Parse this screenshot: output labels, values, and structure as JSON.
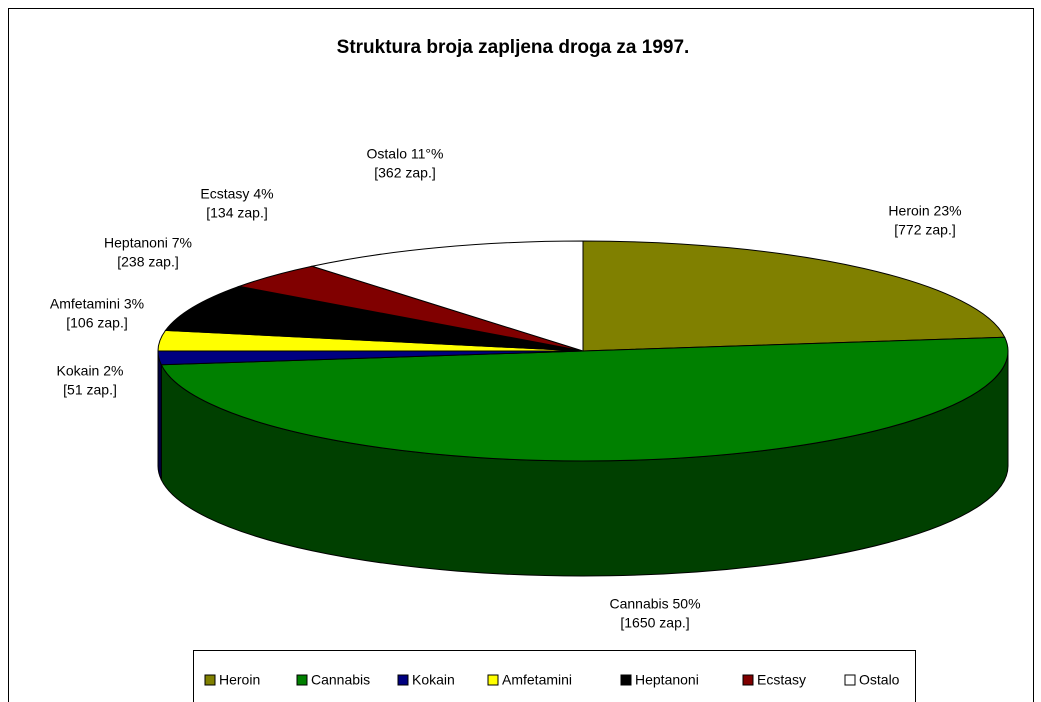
{
  "chart_data": {
    "type": "pie3d",
    "title": "Struktura broja zapljena droga za 1997.",
    "categories": [
      "Heroin",
      "Cannabis",
      "Kokain",
      "Amfetamini",
      "Heptanoni",
      "Ecstasy",
      "Ostalo"
    ],
    "values": [
      23,
      50,
      2,
      3,
      7,
      4,
      11
    ],
    "value_labels": [
      "Heroin 23%",
      "Cannabis 50%",
      "Kokain 2%",
      "Amfetamini 3%",
      "Heptanoni 7%",
      "Ecstasy 4%",
      "Ostalo 11°%"
    ],
    "counts": [
      772,
      1650,
      51,
      106,
      238,
      134,
      362
    ],
    "count_labels": [
      "[772 zap.]",
      "[1650 zap.]",
      "[51 zap.]",
      "[106 zap.]",
      "[238 zap.]",
      "[134 zap.]",
      "[362 zap.]"
    ],
    "colors": [
      "#808000",
      "#008000",
      "#000080",
      "#ffff00",
      "#000000",
      "#800000",
      "#ffffff"
    ],
    "legend": "bottom"
  }
}
